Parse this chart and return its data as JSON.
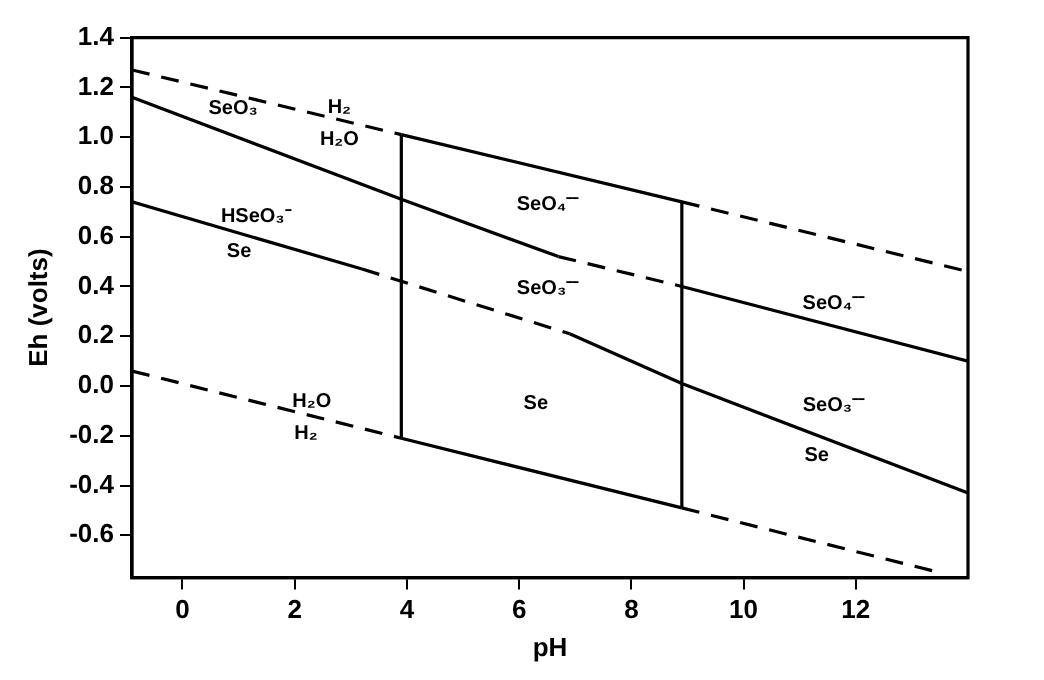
{
  "chart_data": {
    "type": "line",
    "xlabel": "pH",
    "ylabel": "Eh (volts)",
    "xlim": [
      -0.9,
      14
    ],
    "xticks": [
      0,
      2,
      4,
      6,
      8,
      10,
      12
    ],
    "ylim": [
      -0.77,
      1.4
    ],
    "yticks": [
      {
        "value": -0.6,
        "label": "-0.6"
      },
      {
        "value": -0.4,
        "label": "-0.4"
      },
      {
        "value": -0.2,
        "label": "-0.2"
      },
      {
        "value": 0,
        "label": "0.0"
      },
      {
        "value": 0.2,
        "label": "0.2"
      },
      {
        "value": 0.4,
        "label": "0.4"
      },
      {
        "value": 0.6,
        "label": "0.6"
      },
      {
        "value": 0.8,
        "label": "0.8"
      },
      {
        "value": 1,
        "label": "1.0"
      },
      {
        "value": 1.2,
        "label": "1.2"
      },
      {
        "value": 1.4,
        "label": "1.4"
      }
    ],
    "grid": false,
    "legend": false,
    "marker": "none",
    "series": [
      {
        "color": "#000000",
        "line_style": "dashed",
        "x": [
          -0.9,
          3.9
        ],
        "values": [
          1.27,
          1.01
        ]
      },
      {
        "color": "#000000",
        "line_style": "solid",
        "x": [
          3.9,
          8.9
        ],
        "values": [
          1.01,
          0.74
        ]
      },
      {
        "color": "#000000",
        "line_style": "dashed",
        "x": [
          8.9,
          14
        ],
        "values": [
          0.74,
          0.46
        ]
      },
      {
        "color": "#000000",
        "line_style": "solid",
        "x": [
          3.9,
          3.9
        ],
        "values": [
          -0.21,
          1.01
        ]
      },
      {
        "color": "#000000",
        "line_style": "solid",
        "x": [
          8.9,
          8.9
        ],
        "values": [
          -0.49,
          0.74
        ]
      },
      {
        "color": "#000000",
        "line_style": "solid",
        "x": [
          3.9,
          8.9
        ],
        "values": [
          -0.21,
          -0.49
        ]
      },
      {
        "color": "#000000",
        "line_style": "dashed",
        "x": [
          -0.9,
          3.9
        ],
        "values": [
          0.06,
          -0.21
        ]
      },
      {
        "color": "#000000",
        "line_style": "dashed",
        "x": [
          8.9,
          13.5
        ],
        "values": [
          -0.49,
          -0.75
        ]
      },
      {
        "color": "#000000",
        "line_style": "solid",
        "x": [
          -0.9,
          3.9,
          6.7
        ],
        "values": [
          1.16,
          0.75,
          0.52
        ]
      },
      {
        "color": "#000000",
        "line_style": "dashed",
        "x": [
          6.7,
          8.9
        ],
        "values": [
          0.52,
          0.4
        ]
      },
      {
        "color": "#000000",
        "line_style": "solid",
        "x": [
          8.9,
          14
        ],
        "values": [
          0.4,
          0.1
        ]
      },
      {
        "color": "#000000",
        "line_style": "solid",
        "x": [
          -0.9,
          3.2
        ],
        "values": [
          0.74,
          0.47
        ]
      },
      {
        "color": "#000000",
        "line_style": "dashed",
        "x": [
          3.2,
          6.9
        ],
        "values": [
          0.47,
          0.21
        ]
      },
      {
        "color": "#000000",
        "line_style": "solid",
        "x": [
          6.9,
          8.9,
          14
        ],
        "values": [
          0.21,
          0.01,
          -0.43
        ]
      }
    ],
    "annotations": [
      "SeO₃",
      "H₂",
      "H₂O",
      "HSeO₃⁻",
      "Se",
      "H₂O",
      "H₂",
      "SeO₄⁻⁻",
      "SeO₃⁻⁻",
      "Se",
      "SeO₄⁻⁻",
      "SeO₃⁻⁻",
      "Se"
    ]
  }
}
